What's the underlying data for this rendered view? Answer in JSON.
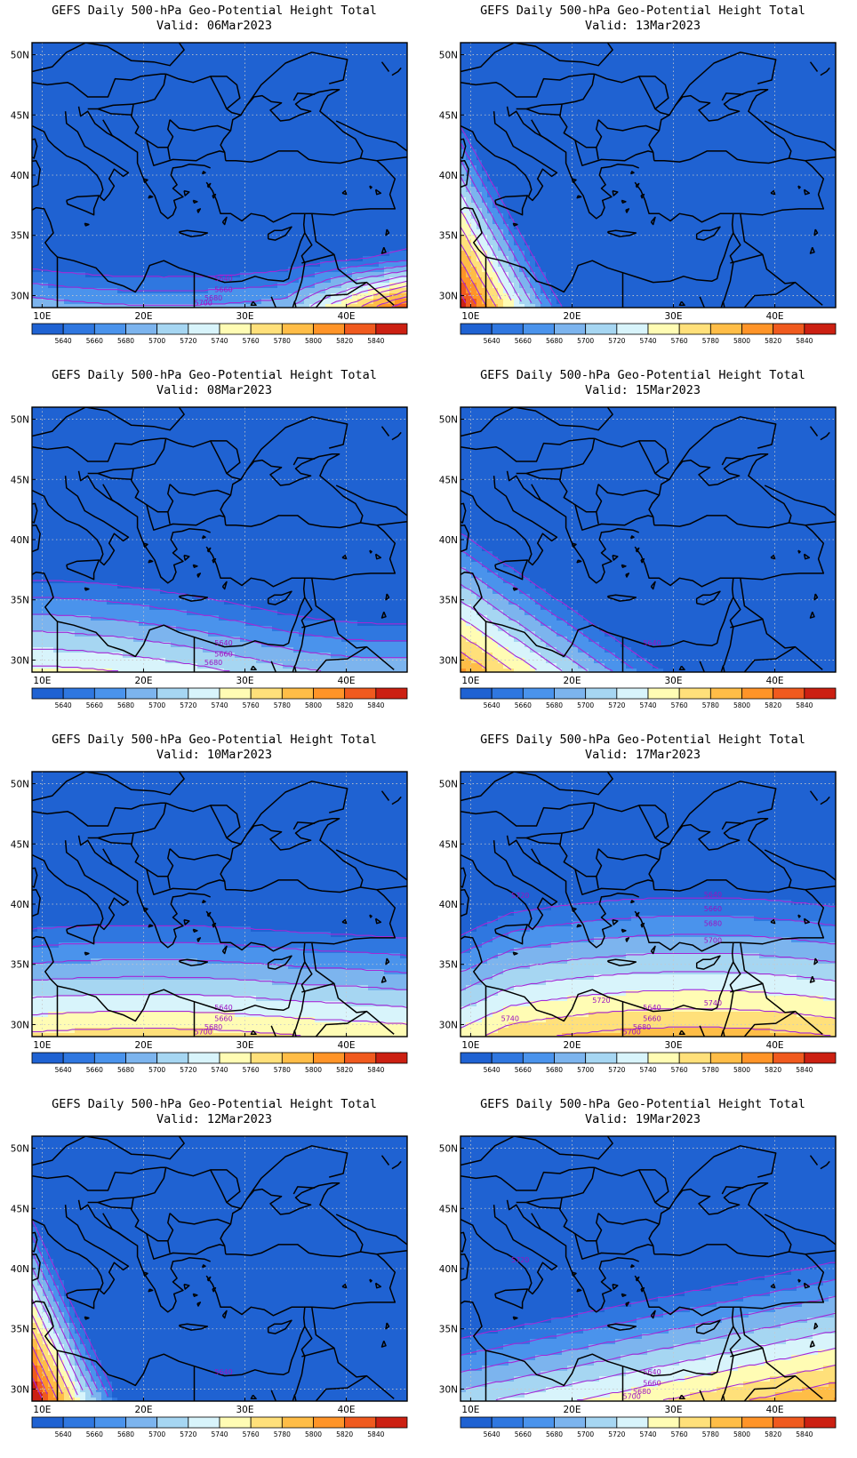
{
  "panels": [
    {
      "title": "GEFS Daily 500-hPa Geo-Potential Height Total",
      "valid": "Valid: 06Mar2023",
      "pattern": "southeast_ridge",
      "contour_labels": [
        "5640",
        "5660",
        "5680",
        "5700"
      ]
    },
    {
      "title": "GEFS Daily 500-hPa Geo-Potential Height Total",
      "valid": "Valid: 13Mar2023",
      "pattern": "southwest_ridge",
      "contour_labels": []
    },
    {
      "title": "GEFS Daily 500-hPa Geo-Potential Height Total",
      "valid": "Valid: 08Mar2023",
      "pattern": "south_band",
      "contour_labels": [
        "5640",
        "5660",
        "5680"
      ]
    },
    {
      "title": "GEFS Daily 500-hPa Geo-Potential Height Total",
      "valid": "Valid: 15Mar2023",
      "pattern": "southwest_diag",
      "contour_labels": [
        "5640"
      ]
    },
    {
      "title": "GEFS Daily 500-hPa Geo-Potential Height Total",
      "valid": "Valid: 10Mar2023",
      "pattern": "flat_south",
      "contour_labels": [
        "5640",
        "5660",
        "5680",
        "5700"
      ]
    },
    {
      "title": "GEFS Daily 500-hPa Geo-Potential Height Total",
      "valid": "Valid: 17Mar2023",
      "pattern": "zonal",
      "contour_labels": [
        "5640",
        "5660",
        "5680",
        "5700",
        "5720",
        "5740",
        "5640",
        "5660",
        "5680",
        "5700",
        "5720",
        "5740"
      ]
    },
    {
      "title": "GEFS Daily 500-hPa Geo-Potential Height Total",
      "valid": "Valid: 12Mar2023",
      "pattern": "west_ridge",
      "contour_labels": [
        "5640"
      ]
    },
    {
      "title": "GEFS Daily 500-hPa Geo-Potential Height Total",
      "valid": "Valid: 19Mar2023",
      "pattern": "southeast_band",
      "contour_labels": [
        "5640",
        "5660",
        "5680",
        "5700",
        "5720"
      ]
    }
  ],
  "lat_labels": [
    "50N",
    "45N",
    "40N",
    "35N",
    "30N"
  ],
  "lon_labels": [
    "10E",
    "20E",
    "30E",
    "40E"
  ],
  "colorbar": {
    "levels": [
      "5640",
      "5660",
      "5680",
      "5700",
      "5720",
      "5740",
      "5760",
      "5780",
      "5800",
      "5820",
      "5840"
    ],
    "colors": [
      "#1f62d2",
      "#2f77e0",
      "#4a93ec",
      "#7cb4ee",
      "#a6d6f2",
      "#d8f4fb",
      "#fffcb4",
      "#ffe07a",
      "#ffbd47",
      "#ff9428",
      "#f05a1e",
      "#cc2012"
    ]
  },
  "contour_color": "#a428d6",
  "contour_label_color": "#9c11c2",
  "coast_color": "#000000"
}
